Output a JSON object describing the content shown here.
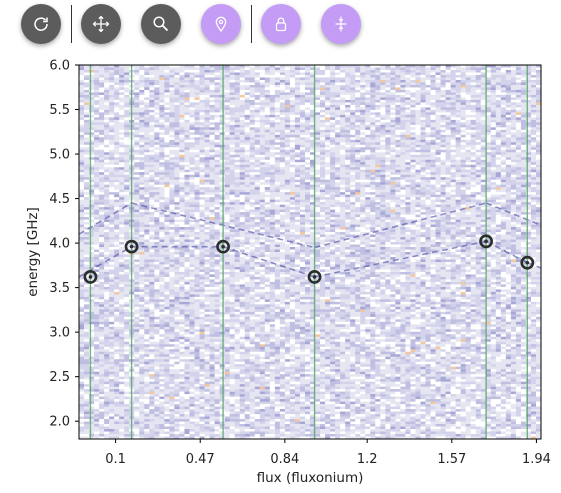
{
  "toolbar": {
    "buttons": [
      {
        "name": "reset-view-button",
        "icon": "rotate-icon",
        "color": "#5c5c5c"
      },
      {
        "name": "pan-button",
        "icon": "move-arrows-icon",
        "color": "#5c5c5c"
      },
      {
        "name": "zoom-button",
        "icon": "magnifier-icon",
        "color": "#5c5c5c"
      },
      {
        "name": "select-point-button",
        "icon": "location-pin-icon",
        "color": "#c49bf5"
      },
      {
        "name": "lock-button",
        "icon": "lock-icon",
        "color": "#c49bf5"
      },
      {
        "name": "snap-line-button",
        "icon": "snap-crosshair-icon",
        "color": "#c49bf5"
      }
    ]
  },
  "chart_data": {
    "type": "heatmap",
    "title": "",
    "xlabel": "flux (fluxonium)",
    "ylabel": "energy [GHz]",
    "xlim": [
      -0.06,
      1.96
    ],
    "ylim": [
      1.8,
      6.0
    ],
    "x_ticks": [
      0.1,
      0.47,
      0.84,
      1.2,
      1.57,
      1.94
    ],
    "x_tick_labels": [
      "0.1",
      "0.47",
      "0.84",
      "1.2",
      "1.57",
      "1.94"
    ],
    "y_ticks": [
      2.0,
      2.5,
      3.0,
      3.5,
      4.0,
      4.5,
      5.0,
      5.5,
      6.0
    ],
    "y_tick_labels": [
      "2.0",
      "2.5",
      "3.0",
      "3.5",
      "4.0",
      "4.5",
      "5.0",
      "5.5",
      "6.0"
    ],
    "colormap": "white-to-purple",
    "vertical_lines_x": [
      -0.01,
      0.17,
      0.57,
      0.97,
      1.72,
      1.9
    ],
    "line_color": "#5aa86a",
    "selected_points": [
      {
        "x": -0.01,
        "y": 3.62
      },
      {
        "x": 0.17,
        "y": 3.96
      },
      {
        "x": 0.57,
        "y": 3.96
      },
      {
        "x": 0.97,
        "y": 3.62
      },
      {
        "x": 1.72,
        "y": 4.02
      },
      {
        "x": 1.9,
        "y": 3.78
      }
    ],
    "transition_bands": [
      {
        "x": [
          -0.06,
          0.17
        ],
        "y": [
          3.62,
          3.96
        ]
      },
      {
        "x": [
          0.17,
          0.57
        ],
        "y": [
          3.96,
          3.96
        ]
      },
      {
        "x": [
          0.57,
          0.97
        ],
        "y": [
          3.96,
          3.62
        ]
      },
      {
        "x": [
          0.97,
          1.72
        ],
        "y": [
          3.62,
          4.02
        ]
      },
      {
        "x": [
          1.72,
          1.9
        ],
        "y": [
          4.02,
          3.78
        ]
      },
      {
        "x": [
          1.9,
          1.96
        ],
        "y": [
          3.78,
          3.72
        ]
      },
      {
        "x": [
          -0.06,
          0.17
        ],
        "y": [
          4.1,
          4.45
        ]
      },
      {
        "x": [
          0.17,
          0.97
        ],
        "y": [
          4.45,
          3.95
        ]
      },
      {
        "x": [
          0.97,
          1.72
        ],
        "y": [
          3.95,
          4.45
        ]
      },
      {
        "x": [
          1.72,
          1.96
        ],
        "y": [
          4.45,
          4.2
        ]
      }
    ]
  }
}
